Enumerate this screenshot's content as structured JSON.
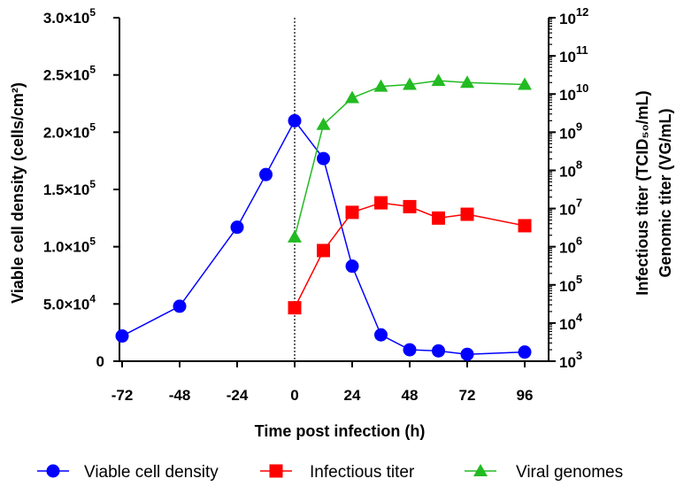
{
  "chart_data": {
    "type": "line",
    "xlabel": "Time post infection (h)",
    "ylabel_left": "Viable cell density (cells/cm²)",
    "ylabel_right_1": "Infectious titer (TCID₅₀/mL)",
    "ylabel_right_2": "Genomic titer (VG/mL)",
    "x_ticks": [
      "-72",
      "-48",
      "-24",
      "0",
      "24",
      "48",
      "72",
      "96"
    ],
    "x_tick_values": [
      -72,
      -48,
      -24,
      0,
      24,
      48,
      72,
      96
    ],
    "xlim": [
      -72,
      96
    ],
    "infection_marker_x": 0,
    "left_axis": {
      "ylim": [
        0,
        300000
      ],
      "ticks": [
        {
          "value": 0,
          "mant": "0",
          "exp": ""
        },
        {
          "value": 50000,
          "mant": "5.0×10",
          "exp": "4"
        },
        {
          "value": 100000,
          "mant": "1.0×10",
          "exp": "5"
        },
        {
          "value": 150000,
          "mant": "1.5×10",
          "exp": "5"
        },
        {
          "value": 200000,
          "mant": "2.0×10",
          "exp": "5"
        },
        {
          "value": 250000,
          "mant": "2.5×10",
          "exp": "5"
        },
        {
          "value": 300000,
          "mant": "3.0×10",
          "exp": "5"
        }
      ]
    },
    "right_axis": {
      "scale": "log",
      "ylim_log10": [
        3,
        12
      ],
      "ticks": [
        {
          "value": 3,
          "base": "10",
          "exp": "3"
        },
        {
          "value": 4,
          "base": "10",
          "exp": "4"
        },
        {
          "value": 5,
          "base": "10",
          "exp": "5"
        },
        {
          "value": 6,
          "base": "10",
          "exp": "6"
        },
        {
          "value": 7,
          "base": "10",
          "exp": "7"
        },
        {
          "value": 8,
          "base": "10",
          "exp": "8"
        },
        {
          "value": 9,
          "base": "10",
          "exp": "9"
        },
        {
          "value": 10,
          "base": "10",
          "exp": "10"
        },
        {
          "value": 11,
          "base": "10",
          "exp": "11"
        },
        {
          "value": 12,
          "base": "10",
          "exp": "12"
        }
      ]
    },
    "series": [
      {
        "name": "Viable cell density",
        "axis": "left",
        "color": "#0000ff",
        "marker": "circle",
        "x": [
          -72,
          -48,
          -24,
          -12,
          0,
          12,
          24,
          36,
          48,
          60,
          72,
          96
        ],
        "values": [
          22000,
          48000,
          117000,
          163000,
          210000,
          177000,
          83000,
          23000,
          10000,
          9000,
          6000,
          8000
        ]
      },
      {
        "name": "Infectious titer",
        "axis": "right",
        "color": "#ff0000",
        "marker": "square",
        "x": [
          0,
          12,
          24,
          36,
          48,
          60,
          72,
          96
        ],
        "values_log10": [
          4.4,
          5.9,
          6.9,
          7.15,
          7.05,
          6.75,
          6.85,
          6.55
        ]
      },
      {
        "name": "Viral genomes",
        "axis": "right",
        "color": "#22bb22",
        "marker": "triangle",
        "x": [
          0,
          12,
          24,
          36,
          48,
          60,
          72,
          96
        ],
        "values_log10": [
          6.25,
          9.2,
          9.9,
          10.2,
          10.25,
          10.35,
          10.3,
          10.25
        ]
      }
    ],
    "legend": [
      {
        "label": "Viable cell density",
        "color": "#0000ff",
        "marker": "circle"
      },
      {
        "label": "Infectious titer",
        "color": "#ff0000",
        "marker": "square"
      },
      {
        "label": "Viral genomes",
        "color": "#22bb22",
        "marker": "triangle"
      }
    ]
  }
}
